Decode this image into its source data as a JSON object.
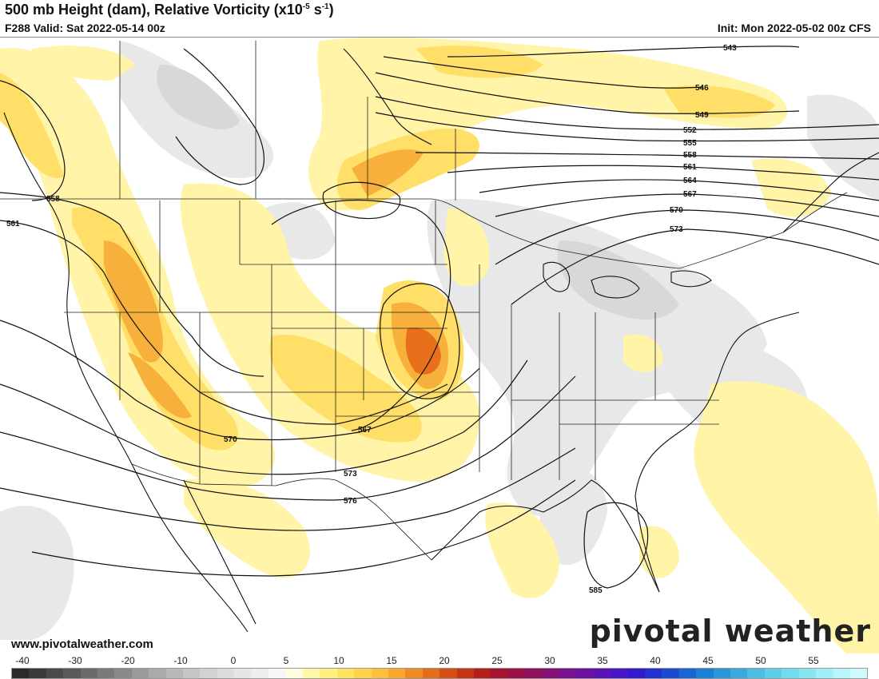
{
  "header": {
    "title_main": "500 mb Height (dam), Relative Vorticity (x10",
    "title_exp": "-5",
    "title_unit": " s",
    "title_exp2": "-1",
    "title_close": ")",
    "valid": "F288 Valid: Sat 2022-05-14 00z",
    "init": "Init: Mon 2022-05-02 00z CFS"
  },
  "footer": {
    "website": "www.pivotalweather.com",
    "brand": "pivotal weather"
  },
  "contour_labels": [
    "543",
    "546",
    "549",
    "552",
    "555",
    "558",
    "561",
    "564",
    "567",
    "570",
    "573",
    "558",
    "561",
    "570",
    "567",
    "573",
    "576",
    "585"
  ],
  "colorbar": {
    "ticks": [
      "-40",
      "-30",
      "-20",
      "-10",
      "0",
      "5",
      "10",
      "15",
      "20",
      "25",
      "30",
      "35",
      "40",
      "45",
      "50",
      "55"
    ],
    "colors": [
      "#2a2a2a",
      "#3a3a3a",
      "#4a4a4a",
      "#5a5a5a",
      "#6a6a6a",
      "#7a7a7a",
      "#8a8a8a",
      "#9a9a9a",
      "#aaaaaa",
      "#b8b8b8",
      "#c6c6c6",
      "#d2d2d2",
      "#dcdcdc",
      "#e6e6e6",
      "#eeeeee",
      "#f6f6f6",
      "#fffde0",
      "#fff7a8",
      "#fff080",
      "#ffe460",
      "#ffd24a",
      "#ffbf3a",
      "#f9a72e",
      "#f08b24",
      "#e46c1c",
      "#d54e16",
      "#c53414",
      "#b51d1c",
      "#a61431",
      "#9a1147",
      "#8e105d",
      "#831074",
      "#79118c",
      "#6b12a3",
      "#5a14b6",
      "#4715c4",
      "#3318cd",
      "#2230cf",
      "#1a4ad1",
      "#1a65d3",
      "#1a80d6",
      "#2a96da",
      "#3aaade",
      "#4cbde3",
      "#5ecde8",
      "#72dbed",
      "#88e6f2",
      "#a0eff7",
      "#b8f6fb",
      "#d0fbfe"
    ],
    "colors_note": "strip colors"
  },
  "colors": {
    "yellow_light": "#fff4a8",
    "yellow": "#ffe070",
    "orange": "#f9b23a",
    "orange_dark": "#e4721c",
    "red": "#d54e16",
    "gray_light": "#ececec",
    "gray": "#dcdcdc"
  }
}
